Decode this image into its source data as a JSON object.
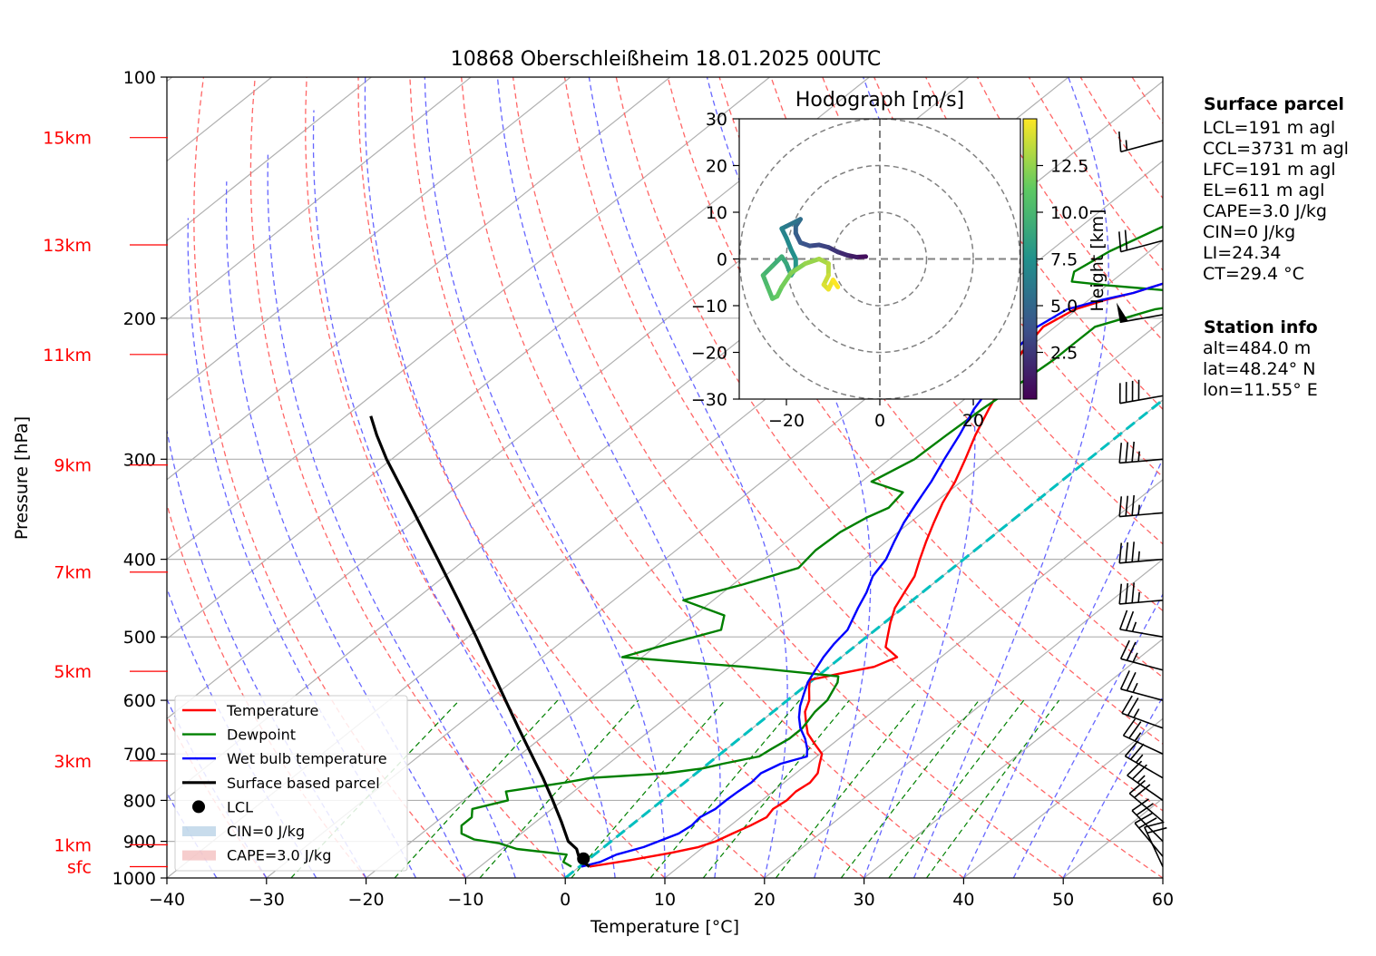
{
  "title": "10868 Oberschleißheim 18.01.2025 00UTC",
  "colors": {
    "temperature": "#ff0000",
    "dewpoint": "#008000",
    "wetbulb": "#0000ff",
    "parcel": "#000000",
    "dry_adiabat": "#ff6666",
    "moist_adiabat": "#6666ff",
    "mixing_ratio": "#008000",
    "freezing_isotherm": "#00bfbf",
    "height_labels": "#ff0000",
    "cin_fill": "#b0cde4",
    "cape_fill": "#f2b8b8"
  },
  "chart_data": [
    {
      "type": "line",
      "title": "10868 Oberschleißheim 18.01.2025 00UTC",
      "xlabel": "Temperature [°C]",
      "ylabel": "Pressure [hPa]",
      "xlim": [
        -40,
        60
      ],
      "ylim": [
        1000,
        100
      ],
      "yscale": "log",
      "grid": true,
      "skew": "skew-T log-p",
      "x_ticks": [
        "−40",
        "−30",
        "−20",
        "−10",
        "0",
        "10",
        "20",
        "30",
        "40",
        "50",
        "60"
      ],
      "y_ticks": [
        "100",
        "200",
        "300",
        "400",
        "500",
        "600",
        "700",
        "800",
        "900",
        "1000"
      ],
      "height_labels": [
        {
          "label": "15km",
          "p": 119
        },
        {
          "label": "13km",
          "p": 162
        },
        {
          "label": "11km",
          "p": 222
        },
        {
          "label": "9km",
          "p": 305
        },
        {
          "label": "7km",
          "p": 415
        },
        {
          "label": "5km",
          "p": 552
        },
        {
          "label": "3km",
          "p": 714
        },
        {
          "label": "1km",
          "p": 909
        },
        {
          "label": "sfc",
          "p": 968
        }
      ],
      "legend": {
        "position": "lower-left",
        "entries": [
          "Temperature",
          "Dewpoint",
          "Wet bulb temperature",
          "Surface based parcel",
          "LCL",
          "CIN=0 J/kg",
          "CAPE=3.0 J/kg"
        ]
      },
      "series": [
        {
          "name": "Temperature",
          "points": [
            [
              968,
              1.0
            ],
            [
              950,
              4.3
            ],
            [
              930,
              7.5
            ],
            [
              915,
              9.5
            ],
            [
              900,
              10.5
            ],
            [
              880,
              11.2
            ],
            [
              860,
              12.0
            ],
            [
              840,
              12.6
            ],
            [
              820,
              12.2
            ],
            [
              800,
              12.5
            ],
            [
              780,
              12.3
            ],
            [
              760,
              12.6
            ],
            [
              740,
              12.2
            ],
            [
              720,
              11.2
            ],
            [
              700,
              10.2
            ],
            [
              680,
              8.2
            ],
            [
              660,
              6.2
            ],
            [
              640,
              4.7
            ],
            [
              620,
              3.2
            ],
            [
              600,
              2.2
            ],
            [
              580,
              0.7
            ],
            [
              566,
              -0.3
            ],
            [
              556,
              1.8
            ],
            [
              545,
              4.5
            ],
            [
              530,
              5.6
            ],
            [
              515,
              3.2
            ],
            [
              500,
              2.1
            ],
            [
              480,
              0.6
            ],
            [
              460,
              -0.8
            ],
            [
              440,
              -1.8
            ],
            [
              420,
              -2.8
            ],
            [
              400,
              -4.4
            ],
            [
              380,
              -6.0
            ],
            [
              360,
              -7.6
            ],
            [
              340,
              -9.2
            ],
            [
              320,
              -10.6
            ],
            [
              300,
              -12.4
            ],
            [
              280,
              -14.4
            ],
            [
              260,
              -16.3
            ],
            [
              240,
              -18.2
            ],
            [
              220,
              -20.2
            ],
            [
              205,
              -21.2
            ],
            [
              195,
              -20.2
            ],
            [
              190,
              -18.4
            ],
            [
              186,
              -16.4
            ],
            [
              180,
              -14.2
            ],
            [
              170,
              -13.5
            ],
            [
              160,
              -11.8
            ],
            [
              150,
              -10.0
            ],
            [
              140,
              -8.0
            ],
            [
              130,
              -5.5
            ],
            [
              125,
              -4.2
            ],
            [
              120,
              -2.8
            ]
          ]
        },
        {
          "name": "Dewpoint",
          "points": [
            [
              968,
              -0.8
            ],
            [
              955,
              -2.2
            ],
            [
              935,
              -2.8
            ],
            [
              920,
              -8.5
            ],
            [
              905,
              -11.0
            ],
            [
              895,
              -14.0
            ],
            [
              880,
              -16.0
            ],
            [
              860,
              -17.0
            ],
            [
              840,
              -17.0
            ],
            [
              820,
              -18.0
            ],
            [
              800,
              -15.5
            ],
            [
              780,
              -16.8
            ],
            [
              760,
              -12.0
            ],
            [
              750,
              -10.0
            ],
            [
              740,
              -3.0
            ],
            [
              730,
              0.0
            ],
            [
              720,
              1.5
            ],
            [
              705,
              4.2
            ],
            [
              690,
              4.5
            ],
            [
              670,
              5.0
            ],
            [
              650,
              5.0
            ],
            [
              620,
              4.2
            ],
            [
              600,
              4.0
            ],
            [
              570,
              2.8
            ],
            [
              560,
              2.1
            ],
            [
              545,
              -8.5
            ],
            [
              530,
              -22.0
            ],
            [
              510,
              -19.0
            ],
            [
              490,
              -15.5
            ],
            [
              470,
              -17.0
            ],
            [
              450,
              -23.0
            ],
            [
              430,
              -19.0
            ],
            [
              410,
              -15.5
            ],
            [
              390,
              -16.0
            ],
            [
              370,
              -15.8
            ],
            [
              355,
              -15.0
            ],
            [
              345,
              -14.0
            ],
            [
              330,
              -14.5
            ],
            [
              320,
              -19.0
            ],
            [
              300,
              -17.5
            ],
            [
              280,
              -17.3
            ],
            [
              260,
              -17.0
            ],
            [
              240,
              -16.4
            ],
            [
              225,
              -16.0
            ],
            [
              215,
              -16.0
            ],
            [
              205,
              -16.0
            ],
            [
              195,
              -12.2
            ],
            [
              190,
              -7.6
            ],
            [
              186,
              -10.0
            ],
            [
              182,
              -20.0
            ],
            [
              180,
              -24.0
            ],
            [
              175,
              -25.0
            ],
            [
              165,
              -24.0
            ],
            [
              150,
              -21.0
            ],
            [
              140,
              -19.0
            ],
            [
              130,
              -15.5
            ],
            [
              120,
              -12.6
            ]
          ]
        },
        {
          "name": "Wet bulb temperature",
          "points": [
            [
              968,
              0.2
            ],
            [
              955,
              1.5
            ],
            [
              935,
              2.2
            ],
            [
              915,
              4.0
            ],
            [
              880,
              5.8
            ],
            [
              860,
              6.1
            ],
            [
              840,
              5.9
            ],
            [
              820,
              6.4
            ],
            [
              800,
              6.4
            ],
            [
              780,
              6.5
            ],
            [
              760,
              6.7
            ],
            [
              740,
              6.5
            ],
            [
              720,
              7.3
            ],
            [
              705,
              9.0
            ],
            [
              690,
              8.1
            ],
            [
              670,
              6.6
            ],
            [
              650,
              4.8
            ],
            [
              630,
              3.3
            ],
            [
              610,
              2.0
            ],
            [
              590,
              0.9
            ],
            [
              570,
              -0.2
            ],
            [
              550,
              -1.0
            ],
            [
              530,
              -1.8
            ],
            [
              510,
              -2.4
            ],
            [
              490,
              -2.8
            ],
            [
              460,
              -4.5
            ],
            [
              440,
              -5.6
            ],
            [
              420,
              -7.0
            ],
            [
              400,
              -7.8
            ],
            [
              380,
              -9.2
            ],
            [
              360,
              -10.6
            ],
            [
              340,
              -11.8
            ],
            [
              320,
              -13.0
            ],
            [
              300,
              -14.5
            ],
            [
              280,
              -16.0
            ],
            [
              260,
              -17.8
            ],
            [
              240,
              -19.2
            ],
            [
              220,
              -21.0
            ],
            [
              205,
              -21.8
            ],
            [
              195,
              -21.0
            ],
            [
              190,
              -18.8
            ],
            [
              186,
              -16.4
            ],
            [
              180,
              -14.2
            ],
            [
              170,
              -13.5
            ],
            [
              160,
              -11.8
            ],
            [
              150,
              -10.0
            ],
            [
              140,
              -8.0
            ],
            [
              130,
              -5.5
            ],
            [
              125,
              -4.2
            ],
            [
              120,
              -2.8
            ]
          ]
        },
        {
          "name": "Surface based parcel",
          "points": [
            [
              968,
              1.0
            ],
            [
              946,
              -1.0
            ],
            [
              920,
              -2.5
            ],
            [
              900,
              -4.3
            ],
            [
              850,
              -7.5
            ],
            [
              800,
              -11.0
            ],
            [
              750,
              -14.8
            ],
            [
              700,
              -19.0
            ],
            [
              650,
              -23.5
            ],
            [
              600,
              -28.3
            ],
            [
              550,
              -33.5
            ],
            [
              500,
              -39.2
            ],
            [
              450,
              -45.6
            ],
            [
              400,
              -52.8
            ],
            [
              350,
              -61.0
            ],
            [
              300,
              -70.5
            ],
            [
              280,
              -74.5
            ],
            [
              265,
              -77.5
            ]
          ]
        }
      ],
      "lcl": {
        "p": 946,
        "t": -0.6
      }
    },
    {
      "type": "line",
      "title": "Hodograph [m/s]",
      "xlim": [
        -30,
        30
      ],
      "ylim": [
        -30,
        30
      ],
      "x_ticks": [
        "−20",
        "0",
        "20"
      ],
      "y_ticks": [
        "30",
        "20",
        "10",
        "0",
        "−10",
        "−20",
        "−30"
      ],
      "rings": [
        10,
        20,
        30
      ],
      "colorbar": {
        "label": "Height [km]",
        "ticks": [
          "2.5",
          "5.0",
          "7.5",
          "10.0",
          "12.5"
        ],
        "range": [
          0,
          15
        ],
        "colormap": "viridis"
      },
      "points": [
        [
          -3,
          0.5,
          0.2
        ],
        [
          -5,
          0.4,
          0.6
        ],
        [
          -7,
          0.8,
          1.2
        ],
        [
          -9,
          1.5,
          1.8
        ],
        [
          -11,
          2.5,
          2.4
        ],
        [
          -13,
          3.0,
          3.0
        ],
        [
          -15,
          2.8,
          3.4
        ],
        [
          -17,
          3.5,
          3.8
        ],
        [
          -18,
          5.5,
          4.2
        ],
        [
          -18,
          7.0,
          4.6
        ],
        [
          -17,
          8.5,
          5.0
        ],
        [
          -18,
          8.0,
          5.4
        ],
        [
          -20,
          7.0,
          5.8
        ],
        [
          -21,
          6.5,
          6.2
        ],
        [
          -20,
          4.5,
          6.6
        ],
        [
          -19,
          2.0,
          7.0
        ],
        [
          -18,
          0.0,
          7.4
        ],
        [
          -18,
          -2.0,
          7.8
        ],
        [
          -19,
          -3.5,
          8.2
        ],
        [
          -20,
          -1.0,
          8.6
        ],
        [
          -21,
          0.5,
          9.0
        ],
        [
          -23,
          -1.5,
          9.4
        ],
        [
          -25,
          -3.5,
          9.8
        ],
        [
          -24,
          -6.0,
          10.2
        ],
        [
          -23,
          -8.5,
          10.6
        ],
        [
          -22,
          -8.0,
          11.0
        ],
        [
          -21,
          -6.0,
          11.4
        ],
        [
          -19,
          -3.0,
          11.8
        ],
        [
          -16,
          -1.0,
          12.2
        ],
        [
          -13,
          0.0,
          12.6
        ],
        [
          -11,
          -1.0,
          13.0
        ],
        [
          -11,
          -3.5,
          13.4
        ],
        [
          -12,
          -5.5,
          13.8
        ],
        [
          -11,
          -6.5,
          14.2
        ],
        [
          -10,
          -4.5,
          14.6
        ],
        [
          -9,
          -6.0,
          15.0
        ]
      ]
    }
  ],
  "annotations": {
    "surface_parcel": {
      "heading": "Surface parcel",
      "lines": [
        "LCL=191 m agl",
        "CCL=3731 m agl",
        "LFC=191 m agl",
        "EL=611 m agl",
        "CAPE=3.0 J/kg",
        "CIN=0 J/kg",
        "LI=24.34",
        "CT=29.4 °C"
      ]
    },
    "station_info": {
      "heading": "Station info",
      "lines": [
        "alt=484.0 m",
        "lat=48.24° N",
        "lon=11.55° E"
      ]
    }
  },
  "wind_barbs": [
    {
      "p": 120,
      "dir": 255,
      "spd": 15
    },
    {
      "p": 160,
      "dir": 255,
      "spd": 20
    },
    {
      "p": 198,
      "dir": 260,
      "spd": 50
    },
    {
      "p": 250,
      "dir": 260,
      "spd": 40
    },
    {
      "p": 300,
      "dir": 265,
      "spd": 35
    },
    {
      "p": 350,
      "dir": 265,
      "spd": 35
    },
    {
      "p": 400,
      "dir": 265,
      "spd": 35
    },
    {
      "p": 450,
      "dir": 265,
      "spd": 35
    },
    {
      "p": 500,
      "dir": 280,
      "spd": 25
    },
    {
      "p": 550,
      "dir": 285,
      "spd": 25
    },
    {
      "p": 600,
      "dir": 285,
      "spd": 25
    },
    {
      "p": 650,
      "dir": 290,
      "spd": 25
    },
    {
      "p": 700,
      "dir": 295,
      "spd": 25
    },
    {
      "p": 750,
      "dir": 300,
      "spd": 25
    },
    {
      "p": 800,
      "dir": 305,
      "spd": 25
    },
    {
      "p": 850,
      "dir": 310,
      "spd": 20
    },
    {
      "p": 900,
      "dir": 315,
      "spd": 20
    },
    {
      "p": 940,
      "dir": 320,
      "spd": 20
    },
    {
      "p": 968,
      "dir": 335,
      "spd": 20
    }
  ]
}
